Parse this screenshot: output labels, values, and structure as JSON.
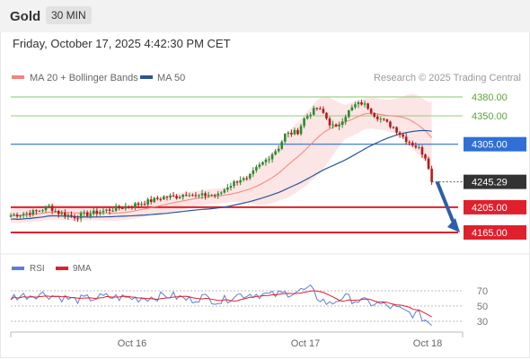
{
  "header": {
    "symbol": "Gold",
    "timeframe": "30 MIN"
  },
  "timestamp": "Friday, October 17, 2025 4:42:30 PM CET",
  "legend": {
    "ma20_bb": {
      "label": "MA 20 + Bollinger Bands",
      "color": "#f4837d"
    },
    "ma50": {
      "label": "MA 50",
      "color": "#2c5596"
    },
    "credit": "Research © 2025 Trading Central"
  },
  "colors": {
    "up": "#2d8a2d",
    "down": "#b31b1b",
    "resistance": "#9fd08a",
    "pivot": "#2f6fd6",
    "support": "#e0202c",
    "current": "#333333",
    "arrow": "#2d5fa6",
    "rsi": "#5b7fd8",
    "rsi_ma": "#e0202c"
  },
  "chart_data": [
    {
      "type": "candlestick",
      "title": "Gold 30 MIN",
      "x_tick_labels": [
        "Oct 16",
        "Oct 17",
        "Oct 18"
      ],
      "ylim": [
        4150,
        4395
      ],
      "current_price": 4245.29,
      "levels": [
        {
          "value": 4380.0,
          "label": "4380.00",
          "kind": "resistance"
        },
        {
          "value": 4350.0,
          "label": "4350.00",
          "kind": "resistance"
        },
        {
          "value": 4305.0,
          "label": "4305.00",
          "kind": "pivot"
        },
        {
          "value": 4205.0,
          "label": "4205.00",
          "kind": "support"
        },
        {
          "value": 4165.0,
          "label": "4165.00",
          "kind": "support"
        }
      ],
      "close_path": [
        [
          0,
          4192
        ],
        [
          8,
          4198
        ],
        [
          12,
          4206
        ],
        [
          15,
          4196
        ],
        [
          20,
          4190
        ],
        [
          25,
          4195
        ],
        [
          30,
          4200
        ],
        [
          40,
          4210
        ],
        [
          48,
          4221
        ],
        [
          52,
          4222
        ],
        [
          56,
          4228
        ],
        [
          58,
          4222
        ],
        [
          62,
          4225
        ],
        [
          65,
          4224
        ],
        [
          68,
          4238
        ],
        [
          72,
          4250
        ],
        [
          74,
          4248
        ],
        [
          77,
          4266
        ],
        [
          80,
          4280
        ],
        [
          84,
          4300
        ],
        [
          86,
          4320
        ],
        [
          90,
          4325
        ],
        [
          92,
          4345
        ],
        [
          94,
          4355
        ],
        [
          96,
          4362
        ],
        [
          98,
          4354
        ],
        [
          100,
          4338
        ],
        [
          102,
          4330
        ],
        [
          104,
          4345
        ],
        [
          106,
          4357
        ],
        [
          108,
          4367
        ],
        [
          110,
          4370
        ],
        [
          112,
          4364
        ],
        [
          114,
          4352
        ],
        [
          116,
          4345
        ],
        [
          118,
          4338
        ],
        [
          120,
          4332
        ],
        [
          122,
          4322
        ],
        [
          124,
          4312
        ],
        [
          126,
          4305
        ],
        [
          128,
          4298
        ],
        [
          130,
          4285
        ],
        [
          131,
          4270
        ],
        [
          132,
          4245
        ]
      ],
      "forecast": {
        "from": 4245.29,
        "to": 4165.0
      },
      "series": [
        {
          "name": "MA 20 + Bollinger Bands",
          "kind": "bollinger"
        },
        {
          "name": "MA 50",
          "kind": "ma50"
        }
      ]
    },
    {
      "type": "line",
      "title": "RSI",
      "ylim": [
        20,
        80
      ],
      "y_ticks": [
        70,
        50,
        30
      ],
      "series": [
        {
          "name": "RSI"
        },
        {
          "name": "9MA"
        }
      ],
      "rsi_path": [
        [
          0,
          62
        ],
        [
          10,
          66
        ],
        [
          20,
          58
        ],
        [
          30,
          62
        ],
        [
          40,
          60
        ],
        [
          50,
          64
        ],
        [
          56,
          58
        ],
        [
          60,
          62
        ],
        [
          66,
          56
        ],
        [
          70,
          64
        ],
        [
          76,
          66
        ],
        [
          82,
          64
        ],
        [
          88,
          68
        ],
        [
          94,
          72
        ],
        [
          96,
          62
        ],
        [
          100,
          52
        ],
        [
          104,
          62
        ],
        [
          110,
          56
        ],
        [
          116,
          52
        ],
        [
          120,
          48
        ],
        [
          124,
          42
        ],
        [
          128,
          38
        ],
        [
          130,
          32
        ],
        [
          132,
          26
        ]
      ]
    }
  ]
}
